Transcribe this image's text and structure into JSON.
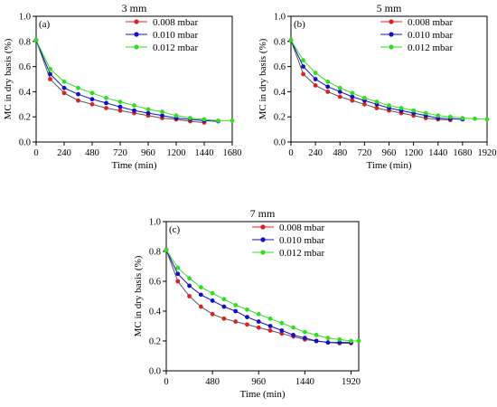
{
  "colors": {
    "series_0": "#e02020",
    "series_1": "#1010c0",
    "series_2": "#33dd22"
  },
  "chart_data": [
    {
      "type": "line",
      "title": "3 mm",
      "panel_label": "(a)",
      "xlabel": "Time (min)",
      "ylabel": "MC in dry basis (%)",
      "xlim": [
        0,
        1680
      ],
      "ylim": [
        0,
        1.0
      ],
      "xticks": [
        0,
        240,
        480,
        720,
        960,
        1200,
        1440,
        1680
      ],
      "yticks": [
        0.0,
        0.2,
        0.4,
        0.6,
        0.8,
        1.0
      ],
      "legend_position": "top-right",
      "series": [
        {
          "name": "0.008 mbar",
          "x": [
            0,
            120,
            240,
            360,
            480,
            600,
            720,
            840,
            960,
            1080,
            1200,
            1320,
            1440
          ],
          "y": [
            0.81,
            0.5,
            0.39,
            0.33,
            0.3,
            0.27,
            0.25,
            0.23,
            0.21,
            0.19,
            0.18,
            0.165,
            0.155
          ]
        },
        {
          "name": "0.010 mbar",
          "x": [
            0,
            120,
            240,
            360,
            480,
            600,
            720,
            840,
            960,
            1080,
            1200,
            1320,
            1440,
            1560
          ],
          "y": [
            0.81,
            0.54,
            0.43,
            0.38,
            0.34,
            0.31,
            0.28,
            0.25,
            0.23,
            0.21,
            0.19,
            0.18,
            0.17,
            0.165
          ]
        },
        {
          "name": "0.012 mbar",
          "x": [
            0,
            120,
            240,
            360,
            480,
            600,
            720,
            840,
            960,
            1080,
            1200,
            1320,
            1440,
            1560,
            1680
          ],
          "y": [
            0.81,
            0.58,
            0.48,
            0.43,
            0.39,
            0.35,
            0.32,
            0.29,
            0.26,
            0.24,
            0.21,
            0.19,
            0.18,
            0.17,
            0.17
          ]
        }
      ]
    },
    {
      "type": "line",
      "title": "5 mm",
      "panel_label": "(b)",
      "xlabel": "Time (min)",
      "ylabel": "MC in dry basis (%)",
      "xlim": [
        0,
        1920
      ],
      "ylim": [
        0,
        1.0
      ],
      "xticks": [
        0,
        240,
        480,
        720,
        960,
        1200,
        1440,
        1680,
        1920
      ],
      "yticks": [
        0.0,
        0.2,
        0.4,
        0.6,
        0.8,
        1.0
      ],
      "legend_position": "top-right",
      "series": [
        {
          "name": "0.008 mbar",
          "x": [
            0,
            120,
            240,
            360,
            480,
            600,
            720,
            840,
            960,
            1080,
            1200,
            1320,
            1440,
            1560
          ],
          "y": [
            0.81,
            0.54,
            0.45,
            0.4,
            0.36,
            0.33,
            0.3,
            0.27,
            0.25,
            0.23,
            0.21,
            0.19,
            0.18,
            0.175
          ]
        },
        {
          "name": "0.010 mbar",
          "x": [
            0,
            120,
            240,
            360,
            480,
            600,
            720,
            840,
            960,
            1080,
            1200,
            1320,
            1440,
            1560,
            1680
          ],
          "y": [
            0.81,
            0.6,
            0.5,
            0.44,
            0.4,
            0.36,
            0.33,
            0.3,
            0.27,
            0.25,
            0.23,
            0.21,
            0.19,
            0.185,
            0.18
          ]
        },
        {
          "name": "0.012 mbar",
          "x": [
            0,
            120,
            240,
            360,
            480,
            600,
            720,
            840,
            960,
            1080,
            1200,
            1320,
            1440,
            1560,
            1680,
            1800,
            1920
          ],
          "y": [
            0.81,
            0.65,
            0.55,
            0.48,
            0.43,
            0.39,
            0.35,
            0.32,
            0.29,
            0.27,
            0.25,
            0.23,
            0.21,
            0.2,
            0.19,
            0.185,
            0.18
          ]
        }
      ]
    },
    {
      "type": "line",
      "title": "7 mm",
      "panel_label": "(c)",
      "xlabel": "Time (min)",
      "ylabel": "MC in dry basis (%)",
      "xlim": [
        0,
        2000
      ],
      "ylim": [
        0,
        1.0
      ],
      "xticks": [
        0,
        480,
        960,
        1440,
        1920
      ],
      "yticks": [
        0.0,
        0.2,
        0.4,
        0.6,
        0.8,
        1.0
      ],
      "legend_position": "top-right",
      "series": [
        {
          "name": "0.008 mbar",
          "x": [
            0,
            120,
            240,
            360,
            480,
            600,
            720,
            840,
            960,
            1080,
            1200,
            1320,
            1440,
            1560,
            1680,
            1800,
            1920
          ],
          "y": [
            0.81,
            0.6,
            0.5,
            0.43,
            0.38,
            0.35,
            0.33,
            0.31,
            0.29,
            0.27,
            0.25,
            0.23,
            0.21,
            0.2,
            0.19,
            0.185,
            0.185
          ]
        },
        {
          "name": "0.010 mbar",
          "x": [
            0,
            120,
            240,
            360,
            480,
            600,
            720,
            840,
            960,
            1080,
            1200,
            1320,
            1440,
            1560,
            1680,
            1800,
            1920
          ],
          "y": [
            0.81,
            0.65,
            0.57,
            0.51,
            0.47,
            0.43,
            0.4,
            0.36,
            0.33,
            0.3,
            0.27,
            0.24,
            0.22,
            0.2,
            0.19,
            0.19,
            0.19
          ]
        },
        {
          "name": "0.012 mbar",
          "x": [
            0,
            120,
            240,
            360,
            480,
            600,
            720,
            840,
            960,
            1080,
            1200,
            1320,
            1440,
            1560,
            1680,
            1800,
            1920,
            2000
          ],
          "y": [
            0.81,
            0.69,
            0.62,
            0.56,
            0.52,
            0.48,
            0.44,
            0.41,
            0.38,
            0.35,
            0.32,
            0.29,
            0.26,
            0.24,
            0.22,
            0.21,
            0.2,
            0.2
          ]
        }
      ]
    }
  ]
}
